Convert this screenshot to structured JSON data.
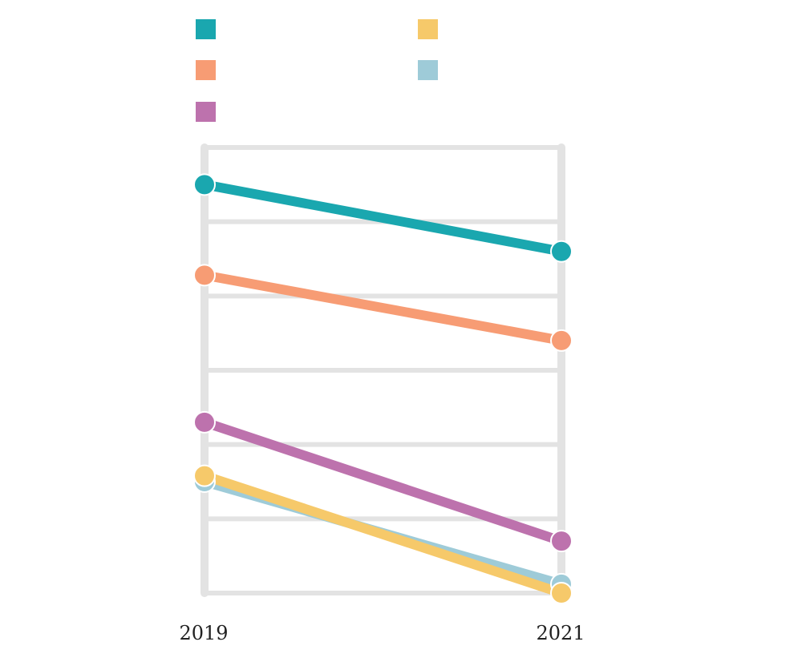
{
  "chart_data": {
    "type": "line",
    "title": "",
    "xlabel": "",
    "ylabel": "",
    "x": [
      "2019",
      "2021"
    ],
    "ylim": [
      0,
      6
    ],
    "grid": true,
    "legend_placement": "top",
    "series": [
      {
        "values": [
          5.5,
          4.6
        ],
        "color": "#1aa7af"
      },
      {
        "values": [
          4.28,
          3.4
        ],
        "color": "#f79c74"
      },
      {
        "values": [
          2.3,
          0.7
        ],
        "color": "#bd72ad"
      },
      {
        "values": [
          1.5,
          0.12
        ],
        "color": "#9ecbd8"
      },
      {
        "values": [
          1.58,
          0.0
        ],
        "color": "#f6c96a"
      }
    ]
  }
}
